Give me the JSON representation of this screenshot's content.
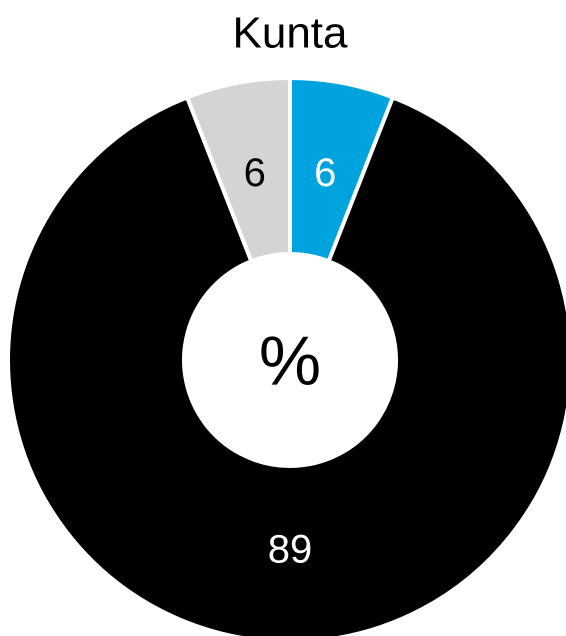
{
  "chart_data": {
    "type": "donut",
    "title": "Kunta",
    "center_label": "%",
    "categories": [
      null,
      null,
      null
    ],
    "values": [
      6,
      89,
      6
    ],
    "colors": [
      "#00a3dd",
      "#000000",
      "#d4d4d4"
    ]
  }
}
